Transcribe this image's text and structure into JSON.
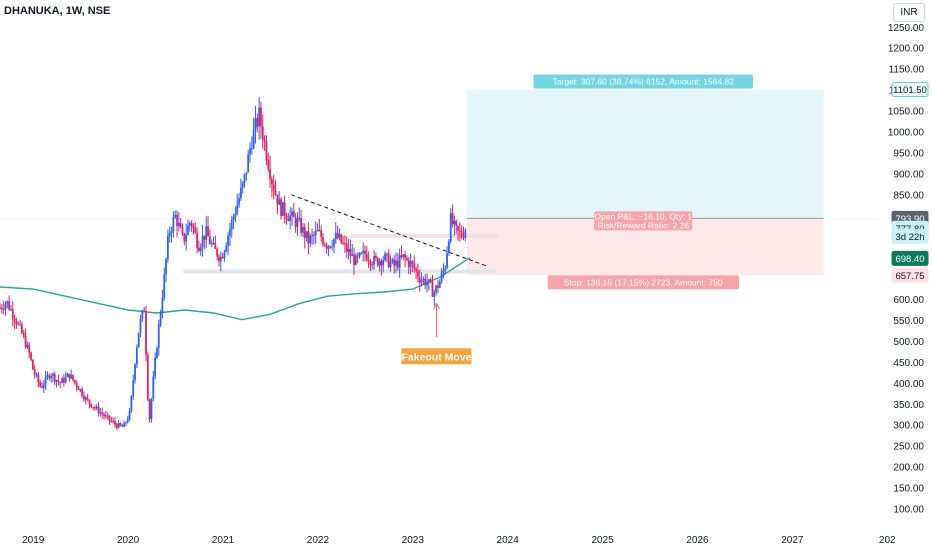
{
  "header": {
    "symbol": "DHANUKA, 1W, NSE",
    "currency": "INR"
  },
  "chart_data": {
    "type": "candlestick",
    "title": "DHANUKA, 1W, NSE",
    "y_axis": {
      "ticks": [
        "1250.00",
        "1200.00",
        "1150.00",
        "1100.00",
        "1050.00",
        "1000.00",
        "950.00",
        "900.00",
        "850.00",
        "800.00",
        "750.00",
        "700.00",
        "650.00",
        "600.00",
        "550.00",
        "500.00",
        "450.00",
        "400.00",
        "350.00",
        "300.00",
        "250.00",
        "200.00",
        "150.00",
        "100.00"
      ],
      "range": [
        80,
        1265
      ]
    },
    "x_axis": {
      "ticks": [
        "2019",
        "2020",
        "2021",
        "2022",
        "2023",
        "2024",
        "2025",
        "2026",
        "2027",
        "202"
      ],
      "range": [
        2018.65,
        2028.05
      ]
    },
    "price_path": [
      [
        2018.65,
        580
      ],
      [
        2018.72,
        595
      ],
      [
        2018.8,
        560
      ],
      [
        2018.88,
        520
      ],
      [
        2018.96,
        470
      ],
      [
        2019.0,
        430
      ],
      [
        2019.08,
        390
      ],
      [
        2019.18,
        425
      ],
      [
        2019.28,
        400
      ],
      [
        2019.38,
        420
      ],
      [
        2019.48,
        390
      ],
      [
        2019.56,
        360
      ],
      [
        2019.66,
        340
      ],
      [
        2019.76,
        320
      ],
      [
        2019.88,
        300
      ],
      [
        2019.95,
        295
      ],
      [
        2020.02,
        330
      ],
      [
        2020.08,
        470
      ],
      [
        2020.12,
        540
      ],
      [
        2020.17,
        580
      ],
      [
        2020.22,
        300
      ],
      [
        2020.27,
        420
      ],
      [
        2020.33,
        550
      ],
      [
        2020.38,
        650
      ],
      [
        2020.43,
        760
      ],
      [
        2020.5,
        800
      ],
      [
        2020.58,
        740
      ],
      [
        2020.66,
        790
      ],
      [
        2020.74,
        730
      ],
      [
        2020.82,
        760
      ],
      [
        2020.9,
        720
      ],
      [
        2020.98,
        700
      ],
      [
        2021.06,
        760
      ],
      [
        2021.14,
        820
      ],
      [
        2021.22,
        880
      ],
      [
        2021.3,
        980
      ],
      [
        2021.38,
        1040
      ],
      [
        2021.45,
        960
      ],
      [
        2021.52,
        880
      ],
      [
        2021.6,
        820
      ],
      [
        2021.7,
        800
      ],
      [
        2021.8,
        780
      ],
      [
        2021.9,
        740
      ],
      [
        2022.0,
        760
      ],
      [
        2022.1,
        730
      ],
      [
        2022.2,
        750
      ],
      [
        2022.3,
        720
      ],
      [
        2022.4,
        690
      ],
      [
        2022.5,
        710
      ],
      [
        2022.6,
        690
      ],
      [
        2022.7,
        700
      ],
      [
        2022.8,
        680
      ],
      [
        2022.9,
        700
      ],
      [
        2023.0,
        680
      ],
      [
        2023.08,
        650
      ],
      [
        2023.16,
        640
      ],
      [
        2023.22,
        615
      ],
      [
        2023.28,
        640
      ],
      [
        2023.34,
        680
      ],
      [
        2023.4,
        790
      ],
      [
        2023.46,
        760
      ],
      [
        2023.52,
        755
      ],
      [
        2023.57,
        777.8
      ]
    ],
    "moving_average": [
      [
        2018.65,
        630
      ],
      [
        2019.0,
        625
      ],
      [
        2019.5,
        600
      ],
      [
        2020.0,
        575
      ],
      [
        2020.3,
        568
      ],
      [
        2020.6,
        575
      ],
      [
        2020.9,
        568
      ],
      [
        2021.2,
        552
      ],
      [
        2021.5,
        565
      ],
      [
        2021.8,
        590
      ],
      [
        2022.1,
        608
      ],
      [
        2022.4,
        614
      ],
      [
        2022.7,
        618
      ],
      [
        2023.0,
        625
      ],
      [
        2023.3,
        655
      ],
      [
        2023.6,
        700
      ]
    ],
    "trendline": {
      "from": [
        2021.72,
        850
      ],
      "to": [
        2023.78,
        680
      ]
    },
    "zones": [
      {
        "from": [
          2020.58,
          667
        ],
        "to": [
          2023.88,
          660
        ],
        "color": "#e0e3eb"
      },
      {
        "from": [
          2022.35,
          752
        ],
        "to": [
          2023.9,
          745
        ],
        "color": "#eedde4"
      }
    ],
    "position": {
      "x_start": 2023.57,
      "x_end": 2027.33,
      "entry": 793.9,
      "target": 1101.5,
      "stop": 657.75,
      "target_label": "Target: 307.60 (38.74%) 6152, Amount: 1564.82",
      "pnl_label_1": "Open P&L: −16.10, Qty: 1",
      "pnl_label_2": "Risk/Reward Ratio: 2.26",
      "stop_label": "Stop: 136.15 (17.15%) 2723, Amount: 750"
    },
    "annotation": {
      "text": "Fakeout Move",
      "x": 2023.25,
      "arrow_from": 510,
      "arrow_to": 590
    },
    "price_tags": [
      {
        "value": 1101.5,
        "label": "1101.50",
        "bg": "#e8f8fb",
        "fg": "#131722",
        "border": "#5fcfdd"
      },
      {
        "value": 793.9,
        "label": "793.90",
        "bg": "#5d606b",
        "fg": "#ffffff",
        "border": "#5d606b"
      },
      {
        "value": 770.0,
        "label": "777.80",
        "bg": "#c8f0f7",
        "fg": "#131722",
        "border": "#c8f0f7"
      },
      {
        "value": 751.0,
        "label": "3d 22h",
        "bg": "#c8f0f7",
        "fg": "#131722",
        "border": "#c8f0f7"
      },
      {
        "value": 698.4,
        "label": "698.40",
        "bg": "#0b7a5a",
        "fg": "#ffffff",
        "border": "#0b7a5a"
      },
      {
        "value": 657.75,
        "label": "657.75",
        "bg": "#fde0e3",
        "fg": "#131722",
        "border": "#fde0e3"
      }
    ],
    "colors": {
      "up": "#2962ff",
      "down": "#e91e63",
      "ma": "#26a69a",
      "target_fill": "#e5f6fb",
      "stop_fill": "#fde8ea",
      "target_label_bg": "#71d5e4",
      "stop_label_bg": "#f7a3a8",
      "annotation": "#f7a440",
      "arrow": "#f06d6d",
      "grid": "#f0f3fa"
    }
  }
}
